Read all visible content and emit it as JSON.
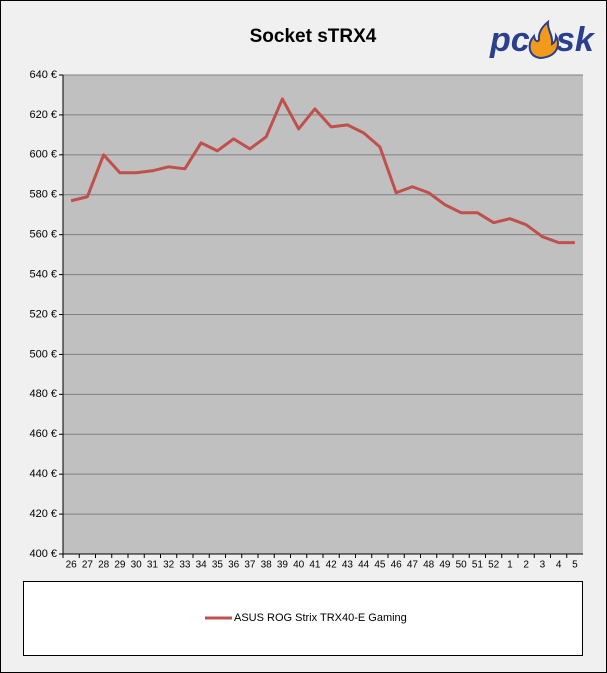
{
  "chart_data": {
    "type": "line",
    "title": "Socket sTRX4",
    "categories": [
      "26",
      "27",
      "28",
      "29",
      "30",
      "31",
      "32",
      "33",
      "34",
      "35",
      "36",
      "37",
      "38",
      "39",
      "40",
      "41",
      "42",
      "43",
      "44",
      "45",
      "46",
      "47",
      "48",
      "49",
      "50",
      "51",
      "52",
      "1",
      "2",
      "3",
      "4",
      "5"
    ],
    "series": [
      {
        "name": "ASUS ROG Strix TRX40-E Gaming",
        "color": "#c0504d",
        "values": [
          577,
          579,
          600,
          591,
          591,
          592,
          594,
          593,
          606,
          602,
          608,
          603,
          609,
          628,
          613,
          623,
          614,
          615,
          611,
          604,
          581,
          584,
          581,
          575,
          571,
          571,
          566,
          568,
          565,
          559,
          556,
          556
        ]
      }
    ],
    "ylim": [
      400,
      640
    ],
    "yticks": [
      {
        "value": 400,
        "label": "400 €"
      },
      {
        "value": 420,
        "label": "420 €"
      },
      {
        "value": 440,
        "label": "440 €"
      },
      {
        "value": 460,
        "label": "460 €"
      },
      {
        "value": 480,
        "label": "480 €"
      },
      {
        "value": 500,
        "label": "500 €"
      },
      {
        "value": 520,
        "label": "520 €"
      },
      {
        "value": 540,
        "label": "540 €"
      },
      {
        "value": 560,
        "label": "560 €"
      },
      {
        "value": 580,
        "label": "580 €"
      },
      {
        "value": 600,
        "label": "600 €"
      },
      {
        "value": 620,
        "label": "620 €"
      },
      {
        "value": 640,
        "label": "640 €"
      }
    ],
    "grid": true,
    "legend": "bottom"
  },
  "logo": {
    "left": "pc",
    "right": "sk"
  }
}
